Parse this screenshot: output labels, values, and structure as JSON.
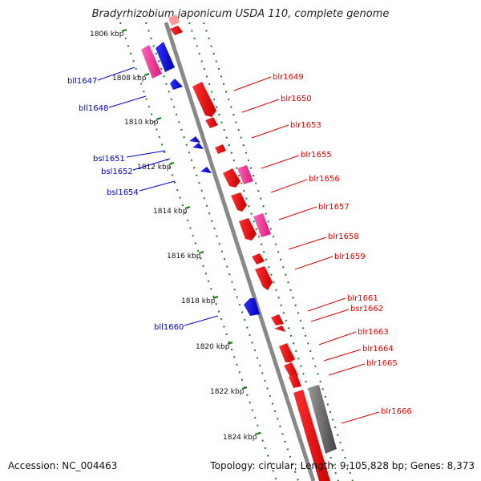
{
  "title": "Bradyrhizobium japonicum USDA 110, complete genome",
  "footer": {
    "accession": "Accession: NC_004463",
    "summary": "Topology: circular; Length: 9,105,828 bp; Genes: 8,373"
  },
  "colors": {
    "forward_gene": "#ff0000",
    "reverse_gene": "#0000ff",
    "pink_gene": "#ff3399",
    "grey_gene": "#666666",
    "backbone": "#888888",
    "scale_track": "#1a7a1a",
    "forward_label": "#dd0000",
    "reverse_label": "#0000cc"
  },
  "scale_marks": [
    {
      "label": "1806 kbp"
    },
    {
      "label": "1808 kbp"
    },
    {
      "label": "1810 kbp"
    },
    {
      "label": "1812 kbp"
    },
    {
      "label": "1814 kbp"
    },
    {
      "label": "1816 kbp"
    },
    {
      "label": "1818 kbp"
    },
    {
      "label": "1820 kbp"
    },
    {
      "label": "1822 kbp"
    },
    {
      "label": "1824 kbp"
    }
  ],
  "reverse_genes": [
    {
      "label": "bll1647"
    },
    {
      "label": "bll1648"
    },
    {
      "label": "bsl1651"
    },
    {
      "label": "bsl1652"
    },
    {
      "label": "bsl1654"
    },
    {
      "label": "bll1660"
    }
  ],
  "forward_genes": [
    {
      "label": "blr1649"
    },
    {
      "label": "blr1650"
    },
    {
      "label": "blr1653"
    },
    {
      "label": "blr1655"
    },
    {
      "label": "blr1656"
    },
    {
      "label": "blr1657"
    },
    {
      "label": "blr1658"
    },
    {
      "label": "blr1659"
    },
    {
      "label": "blr1661"
    },
    {
      "label": "bsr1662"
    },
    {
      "label": "blr1663"
    },
    {
      "label": "blr1664"
    },
    {
      "label": "blr1665"
    },
    {
      "label": "blr1666"
    }
  ]
}
